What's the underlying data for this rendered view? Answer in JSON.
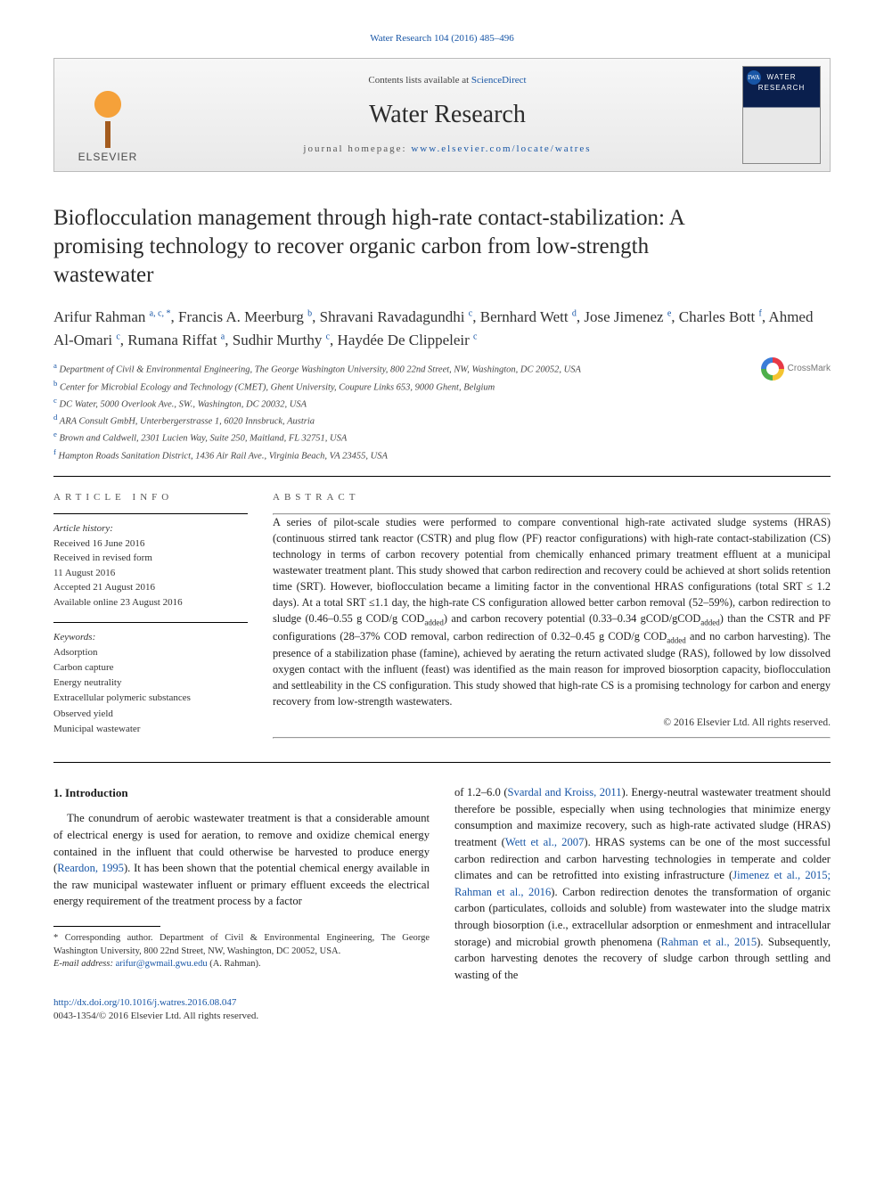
{
  "citation_line": "Water Research 104 (2016) 485–496",
  "banner": {
    "contents_prefix": "Contents lists available at ",
    "contents_link_text": "ScienceDirect",
    "journal_name": "Water Research",
    "homepage_prefix": "journal homepage: ",
    "homepage_link_text": "www.elsevier.com/locate/watres",
    "publisher_word": "ELSEVIER",
    "cover_title": "WATER RESEARCH",
    "cover_badge": "IWA"
  },
  "crossmark_label": "CrossMark",
  "title": "Bioflocculation management through high-rate contact-stabilization: A promising technology to recover organic carbon from low-strength wastewater",
  "authors_html": "Arifur Rahman <sup>a, c, *</sup>, Francis A. Meerburg <sup>b</sup>, Shravani Ravadagundhi <sup>c</sup>, Bernhard Wett <sup>d</sup>, Jose Jimenez <sup>e</sup>, Charles Bott <sup>f</sup>, Ahmed Al-Omari <sup>c</sup>, Rumana Riffat <sup>a</sup>, Sudhir Murthy <sup>c</sup>, Haydée De Clippeleir <sup>c</sup>",
  "affiliations": [
    {
      "sup": "a",
      "text": "Department of Civil & Environmental Engineering, The George Washington University, 800 22nd Street, NW, Washington, DC 20052, USA"
    },
    {
      "sup": "b",
      "text": "Center for Microbial Ecology and Technology (CMET), Ghent University, Coupure Links 653, 9000 Ghent, Belgium"
    },
    {
      "sup": "c",
      "text": "DC Water, 5000 Overlook Ave., SW., Washington, DC 20032, USA"
    },
    {
      "sup": "d",
      "text": "ARA Consult GmbH, Unterbergerstrasse 1, 6020 Innsbruck, Austria"
    },
    {
      "sup": "e",
      "text": "Brown and Caldwell, 2301 Lucien Way, Suite 250, Maitland, FL 32751, USA"
    },
    {
      "sup": "f",
      "text": "Hampton Roads Sanitation District, 1436 Air Rail Ave., Virginia Beach, VA 23455, USA"
    }
  ],
  "section_heads": {
    "article_info": "ARTICLE INFO",
    "abstract": "ABSTRACT"
  },
  "history": {
    "label": "Article history:",
    "lines": [
      "Received 16 June 2016",
      "Received in revised form",
      "11 August 2016",
      "Accepted 21 August 2016",
      "Available online 23 August 2016"
    ]
  },
  "keywords": {
    "label": "Keywords:",
    "items": [
      "Adsorption",
      "Carbon capture",
      "Energy neutrality",
      "Extracellular polymeric substances",
      "Observed yield",
      "Municipal wastewater"
    ]
  },
  "abstract": "A series of pilot-scale studies were performed to compare conventional high-rate activated sludge systems (HRAS) (continuous stirred tank reactor (CSTR) and plug flow (PF) reactor configurations) with high-rate contact-stabilization (CS) technology in terms of carbon recovery potential from chemically enhanced primary treatment effluent at a municipal wastewater treatment plant. This study showed that carbon redirection and recovery could be achieved at short solids retention time (SRT). However, bioflocculation became a limiting factor in the conventional HRAS configurations (total SRT ≤ 1.2 days). At a total SRT ≤1.1 day, the high-rate CS configuration allowed better carbon removal (52–59%), carbon redirection to sludge (0.46–0.55 g COD/g CODadded) and carbon recovery potential (0.33–0.34 gCOD/gCODadded) than the CSTR and PF configurations (28–37% COD removal, carbon redirection of 0.32–0.45 g COD/g CODadded and no carbon harvesting). The presence of a stabilization phase (famine), achieved by aerating the return activated sludge (RAS), followed by low dissolved oxygen contact with the influent (feast) was identified as the main reason for improved biosorption capacity, bioflocculation and settleability in the CS configuration. This study showed that high-rate CS is a promising technology for carbon and energy recovery from low-strength wastewaters.",
  "copyright_line": "© 2016 Elsevier Ltd. All rights reserved.",
  "intro_heading": "1. Introduction",
  "intro_col1": "The conundrum of aerobic wastewater treatment is that a considerable amount of electrical energy is used for aeration, to remove and oxidize chemical energy contained in the influent that could otherwise be harvested to produce energy (Reardon, 1995). It has been shown that the potential chemical energy available in the raw municipal wastewater influent or primary effluent exceeds the electrical energy requirement of the treatment process by a factor",
  "intro_col2": "of 1.2–6.0 (Svardal and Kroiss, 2011). Energy-neutral wastewater treatment should therefore be possible, especially when using technologies that minimize energy consumption and maximize recovery, such as high-rate activated sludge (HRAS) treatment (Wett et al., 2007). HRAS systems can be one of the most successful carbon redirection and carbon harvesting technologies in temperate and colder climates and can be retrofitted into existing infrastructure (Jimenez et al., 2015; Rahman et al., 2016). Carbon redirection denotes the transformation of organic carbon (particulates, colloids and soluble) from wastewater into the sludge matrix through biosorption (i.e., extracellular adsorption or enmeshment and intracellular storage) and microbial growth phenomena (Rahman et al., 2015). Subsequently, carbon harvesting denotes the recovery of sludge carbon through settling and wasting of the",
  "footnote": {
    "corresponding": "* Corresponding author. Department of Civil & Environmental Engineering, The George Washington University, 800 22nd Street, NW, Washington, DC 20052, USA.",
    "email_label": "E-mail address:",
    "email": "arifur@gwmail.gwu.edu",
    "email_attribution": "(A. Rahman)."
  },
  "footer": {
    "doi": "http://dx.doi.org/10.1016/j.watres.2016.08.047",
    "issn_cpr": "0043-1354/© 2016 Elsevier Ltd. All rights reserved."
  },
  "colors": {
    "link": "#1856a6",
    "text": "#1a1a1a",
    "rule": "#000000",
    "banner_border": "#bcbcbc"
  }
}
